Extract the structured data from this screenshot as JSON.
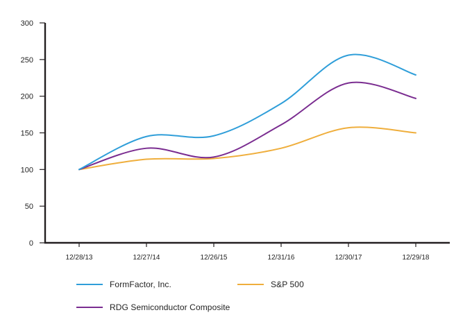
{
  "chart_data": {
    "type": "line",
    "title": "",
    "xlabel": "",
    "ylabel": "",
    "background_color": "#ffffff",
    "axis_color": "#231f20",
    "text_color": "#1f1f1f",
    "grid": false,
    "smooth": true,
    "legend_position": "bottom",
    "ylim": [
      0,
      300
    ],
    "y_ticks": [
      0,
      50,
      100,
      150,
      200,
      250,
      300
    ],
    "x_tick_labels": [
      "12/28/13",
      "12/27/14",
      "12/26/15",
      "12/31/16",
      "12/30/17",
      "12/29/18"
    ],
    "series": [
      {
        "name": "FormFactor, Inc.",
        "color": "#2f9ed9",
        "values": [
          100,
          145,
          146,
          190,
          256,
          229
        ]
      },
      {
        "name": "S&P 500",
        "color": "#efae3c",
        "values": [
          100,
          114,
          115,
          129,
          157,
          150
        ]
      },
      {
        "name": "RDG Semiconductor Composite",
        "color": "#7a2c90",
        "values": [
          100,
          129,
          117,
          161,
          218,
          197
        ]
      }
    ]
  }
}
